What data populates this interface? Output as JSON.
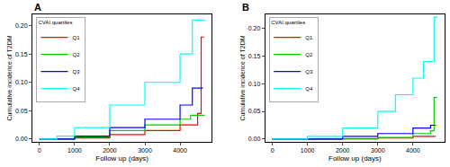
{
  "chart_data": [
    {
      "type": "line",
      "title": "A",
      "x_label": "Follow up (days)",
      "y_label": "Cumulative incidence of T2DM",
      "legend": "top-left",
      "legend_title": "CVAI quartiles",
      "line_style": "step",
      "xlim": [
        -200,
        4900
      ],
      "xticks": [
        0,
        1000,
        2000,
        3000,
        4000
      ],
      "ylim": [
        -0.005,
        0.22
      ],
      "yticks": [
        {
          "value": 0,
          "label": "0.00"
        },
        {
          "value": 0.05,
          "label": "0.05"
        },
        {
          "value": 0.1,
          "label": "0.10"
        },
        {
          "value": 0.15,
          "label": "0.15"
        },
        {
          "value": 0.2,
          "label": "0.20"
        }
      ],
      "series": [
        {
          "name": "Q1",
          "color": "#ff0000",
          "x": [
            0,
            1000,
            2000,
            3000,
            4000,
            4500,
            4600,
            4680
          ],
          "values": [
            0,
            0.002,
            0.008,
            0.015,
            0.025,
            0.045,
            0.18,
            0.18
          ]
        },
        {
          "name": "Q2",
          "color": "#00cc00",
          "x": [
            0,
            1000,
            2000,
            3000,
            4000,
            4300,
            4700
          ],
          "values": [
            0,
            0.004,
            0.015,
            0.025,
            0.035,
            0.042,
            0.042
          ]
        },
        {
          "name": "Q3",
          "color": "#0000ff",
          "x": [
            0,
            1000,
            2000,
            3000,
            4000,
            4350,
            4650
          ],
          "values": [
            0,
            0.005,
            0.02,
            0.035,
            0.06,
            0.09,
            0.09
          ]
        },
        {
          "name": "Q4",
          "color": "#00ffff",
          "x": [
            0,
            500,
            1000,
            2000,
            3000,
            4000,
            4350,
            4700
          ],
          "values": [
            0,
            0.005,
            0.02,
            0.06,
            0.1,
            0.15,
            0.21,
            0.21
          ]
        }
      ]
    },
    {
      "type": "line",
      "title": "B",
      "x_label": "Follow up (days)",
      "y_label": "Cumulative incidence of T2DM",
      "legend": "top-left",
      "legend_title": "CVAI quartiles",
      "line_style": "step",
      "xlim": [
        -200,
        4900
      ],
      "xticks": [
        0,
        1000,
        2000,
        3000,
        4000
      ],
      "ylim": [
        -0.005,
        0.225
      ],
      "yticks": [
        {
          "value": 0,
          "label": "0.00"
        },
        {
          "value": 0.05,
          "label": "0.05"
        },
        {
          "value": 0.1,
          "label": "0.10"
        },
        {
          "value": 0.15,
          "label": "0.15"
        },
        {
          "value": 0.2,
          "label": "0.20"
        }
      ],
      "series": [
        {
          "name": "Q1",
          "color": "#ff0000",
          "x": [
            0,
            2000,
            3000,
            4000,
            4650
          ],
          "values": [
            0,
            0.001,
            0.002,
            0.005,
            0.005
          ]
        },
        {
          "name": "Q2",
          "color": "#00cc00",
          "x": [
            0,
            3000,
            4000,
            4500,
            4600,
            4680
          ],
          "values": [
            0,
            0.003,
            0.01,
            0.015,
            0.075,
            0.075
          ]
        },
        {
          "name": "Q3",
          "color": "#0000ff",
          "x": [
            0,
            2000,
            3000,
            4000,
            4500,
            4650
          ],
          "values": [
            0,
            0.005,
            0.01,
            0.02,
            0.025,
            0.025
          ]
        },
        {
          "name": "Q4",
          "color": "#00ffff",
          "x": [
            0,
            1000,
            2000,
            3000,
            3500,
            4000,
            4300,
            4600,
            4700
          ],
          "values": [
            0,
            0.005,
            0.02,
            0.05,
            0.08,
            0.11,
            0.14,
            0.22,
            0.22
          ]
        }
      ]
    }
  ]
}
